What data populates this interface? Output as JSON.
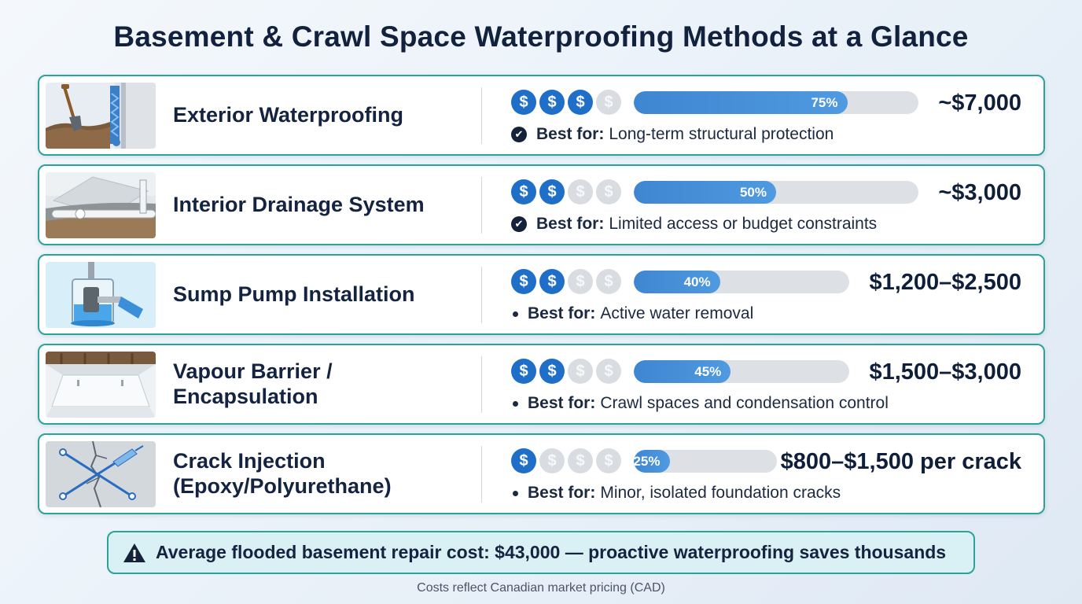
{
  "title": "Basement & Crawl Space Waterproofing Methods at a Glance",
  "best_for_label": "Best for:",
  "methods": [
    {
      "name": "Exterior Waterproofing",
      "cost_level": 3,
      "cost_max": 4,
      "relative_cost_percent": 75,
      "relative_cost_label": "75%",
      "price": "~$7,000",
      "best_for": "Long-term structural protection",
      "bullet": "check",
      "image": "exterior-excavation-illustration"
    },
    {
      "name": "Interior Drainage System",
      "cost_level": 2,
      "cost_max": 4,
      "relative_cost_percent": 50,
      "relative_cost_label": "50%",
      "price": "~$3,000",
      "best_for": "Limited access or budget constraints",
      "bullet": "check",
      "image": "interior-drain-illustration"
    },
    {
      "name": "Sump Pump Installation",
      "cost_level": 2,
      "cost_max": 4,
      "relative_cost_percent": 40,
      "relative_cost_label": "40%",
      "price": "$1,200–$2,500",
      "best_for": "Active water removal",
      "bullet": "dot",
      "image": "sump-pump-illustration"
    },
    {
      "name": "Vapour Barrier / Encapsulation",
      "cost_level": 2,
      "cost_max": 4,
      "relative_cost_percent": 45,
      "relative_cost_label": "45%",
      "price": "$1,500–$3,000",
      "best_for": "Crawl spaces and condensation control",
      "bullet": "dot",
      "image": "crawl-space-encapsulation-illustration"
    },
    {
      "name": "Crack Injection (Epoxy/Polyurethane)",
      "cost_level": 1,
      "cost_max": 4,
      "relative_cost_percent": 25,
      "relative_cost_label": "25%",
      "price": "$800–$1,500 per crack",
      "best_for": "Minor, isolated foundation cracks",
      "bullet": "dot",
      "image": "crack-injection-illustration"
    }
  ],
  "banner": "Average flooded basement repair cost: $43,000 — proactive waterproofing saves thousands",
  "footnote": "Costs reflect Canadian market pricing (CAD)",
  "colors": {
    "accent_border": "#2aa39a",
    "coin_active": "#1f6fc8",
    "coin_inactive": "#d9dde2",
    "bar_fill": "#4a90d9",
    "bar_track": "#dde1e6",
    "banner_bg": "#d9f0f4",
    "title_text": "#12213d"
  },
  "icons": {
    "coin": "dollar-coin-icon",
    "check": "check-circle-icon",
    "warning": "warning-triangle-icon"
  }
}
